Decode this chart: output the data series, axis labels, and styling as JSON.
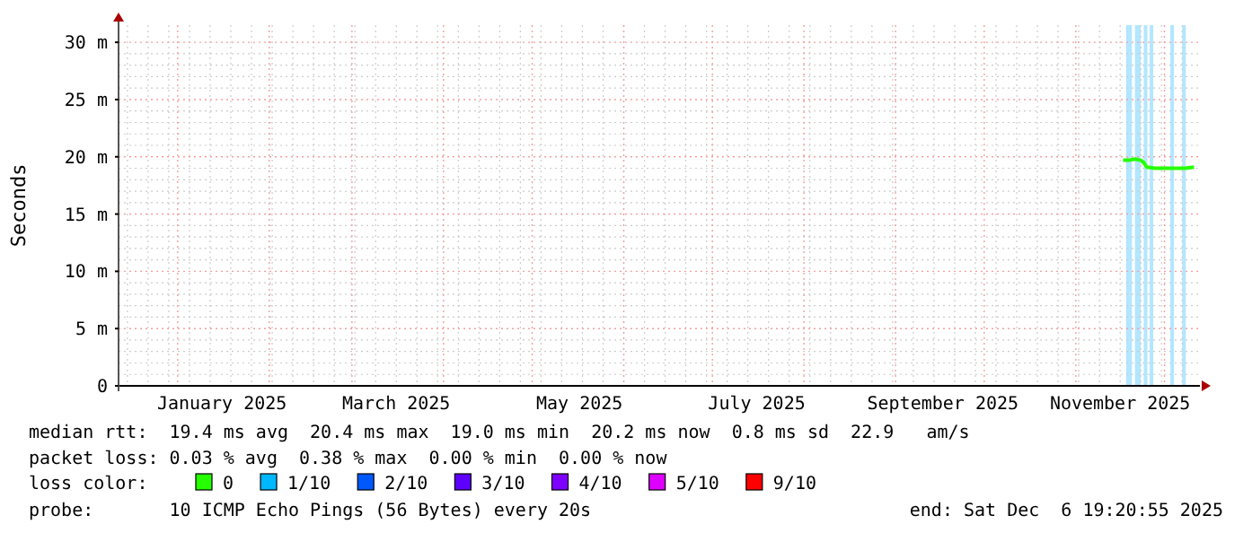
{
  "chart_data": {
    "type": "line",
    "ylabel": "Seconds",
    "legend_title": "loss color:",
    "legend": "bottom",
    "grid": true,
    "xlim": [
      "2024-12-12",
      "2025-12-13"
    ],
    "xticks": [
      {
        "value": "2025-01-16",
        "label": "January 2025"
      },
      {
        "value": "2025-03-16",
        "label": "March 2025"
      },
      {
        "value": "2025-05-17",
        "label": "May 2025"
      },
      {
        "value": "2025-07-16",
        "label": "July 2025"
      },
      {
        "value": "2025-09-17",
        "label": "September 2025"
      },
      {
        "value": "2025-11-16",
        "label": "November 2025"
      }
    ],
    "ylim": [
      0,
      31.5
    ],
    "yticks": [
      0,
      {
        "value": 5,
        "label": "5 m"
      },
      {
        "value": 10,
        "label": "10 m"
      },
      {
        "value": 15,
        "label": "15 m"
      },
      {
        "value": 20,
        "label": "20 m"
      },
      {
        "value": 25,
        "label": "25 m"
      },
      {
        "value": 30,
        "label": "30 m"
      }
    ],
    "series": [
      {
        "name": "0",
        "color": "#26ff00",
        "x": [
          "2025-11-17",
          "2025-11-19",
          "2025-11-21",
          "2025-11-23",
          "2025-11-24",
          "2025-11-25",
          "2025-11-28",
          "2025-12-01",
          "2025-12-05",
          "2025-12-08",
          "2025-12-11"
        ],
        "values": [
          19.7,
          19.7,
          19.8,
          19.7,
          19.5,
          19.1,
          19.0,
          19.0,
          19.0,
          19.0,
          19.1
        ]
      },
      {
        "name": "1/10",
        "color": "#00b8ff"
      },
      {
        "name": "2/10",
        "color": "#0059ff"
      },
      {
        "name": "3/10",
        "color": "#5e00ff"
      },
      {
        "name": "4/10",
        "color": "#7e00ff"
      },
      {
        "name": "5/10",
        "color": "#dd00ff"
      },
      {
        "name": "9/10",
        "color": "#ff0000"
      }
    ],
    "bands": [
      {
        "axis": "x",
        "from": "2025-11-18",
        "to": "2025-11-20",
        "color": "#b3e6ff"
      },
      {
        "axis": "x",
        "from": "2025-11-21",
        "to": "2025-11-23",
        "color": "#b3e6ff"
      },
      {
        "axis": "x",
        "from": "2025-11-24",
        "to": "2025-11-25",
        "color": "#b3e6ff"
      },
      {
        "axis": "x",
        "from": "2025-11-26",
        "to": "2025-11-27",
        "color": "#b3e6ff"
      },
      {
        "axis": "x",
        "from": "2025-12-03",
        "to": "2025-12-04",
        "color": "#b3e6ff"
      },
      {
        "axis": "x",
        "from": "2025-12-07",
        "to": "2025-12-08",
        "color": "#b3e6ff"
      }
    ],
    "annotations": [
      "median rtt:  19.4 ms avg  20.4 ms max  19.0 ms min  20.2 ms now  0.8 ms sd  22.9   am/s",
      "packet loss: 0.03 % avg  0.38 % max  0.00 % min  0.00 % now",
      "probe:       10 ICMP Echo Pings (56 Bytes) every 20s",
      "end: Sat Dec  6 19:20:55 2025"
    ]
  }
}
